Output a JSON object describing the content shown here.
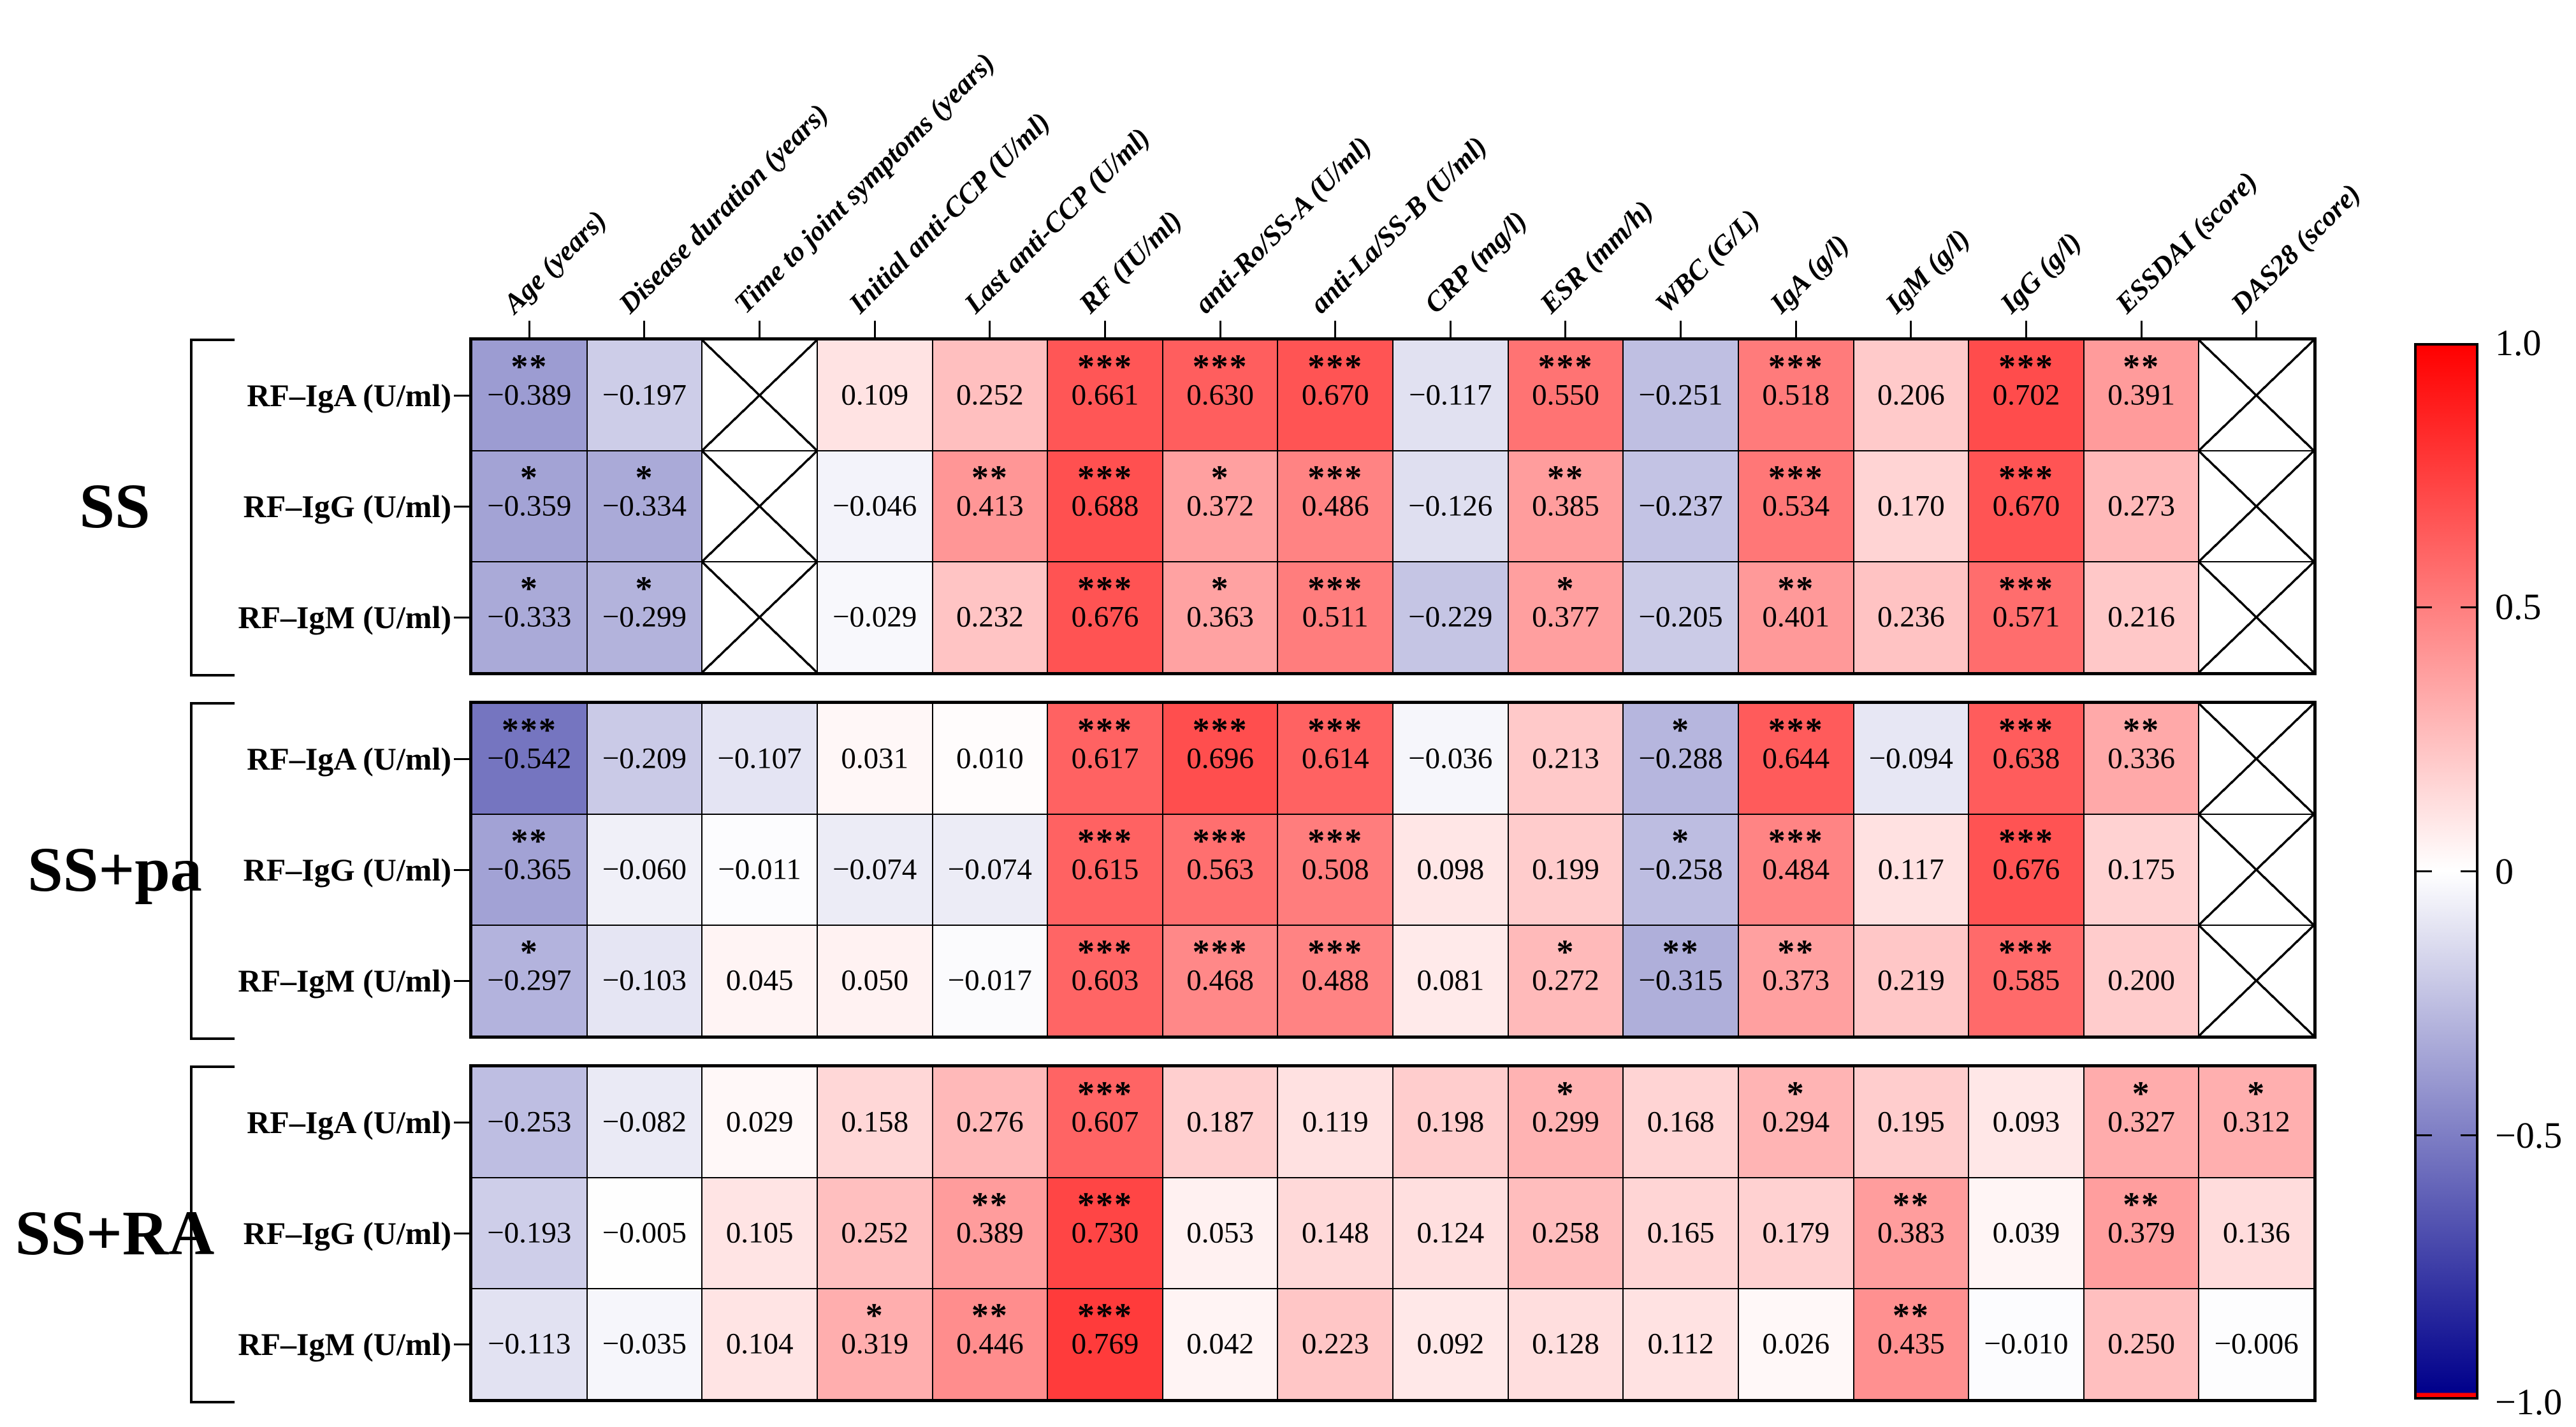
{
  "chart_data": {
    "type": "heatmap",
    "title": "",
    "description_note": "",
    "columns": [
      "Age (years)",
      "Disease duration (years)",
      "Time to joint symptoms (years)",
      "Initial anti-CCP (U/ml)",
      "Last anti-CCP (U/ml)",
      "RF (IU/ml)",
      "anti-Ro/SS-A (U/ml)",
      "anti-La/SS-B (U/ml)",
      "CRP (mg/l)",
      "ESR (mm/h)",
      "WBC (G/L)",
      "IgA (g/l)",
      "IgM (g/l)",
      "IgG (g/l)",
      "ESSDAI (score)",
      "DAS28 (score)"
    ],
    "groups": [
      {
        "label": "SS",
        "rows": [
          {
            "label": "RF–IgA (U/ml)",
            "cells": [
              {
                "v": -0.389,
                "sig": "**"
              },
              {
                "v": -0.197,
                "sig": ""
              },
              null,
              {
                "v": 0.109,
                "sig": ""
              },
              {
                "v": 0.252,
                "sig": ""
              },
              {
                "v": 0.661,
                "sig": "***"
              },
              {
                "v": 0.63,
                "sig": "***"
              },
              {
                "v": 0.67,
                "sig": "***"
              },
              {
                "v": -0.117,
                "sig": ""
              },
              {
                "v": 0.55,
                "sig": "***"
              },
              {
                "v": -0.251,
                "sig": ""
              },
              {
                "v": 0.518,
                "sig": "***"
              },
              {
                "v": 0.206,
                "sig": ""
              },
              {
                "v": 0.702,
                "sig": "***"
              },
              {
                "v": 0.391,
                "sig": "**"
              },
              null
            ]
          },
          {
            "label": "RF–IgG (U/ml)",
            "cells": [
              {
                "v": -0.359,
                "sig": "*"
              },
              {
                "v": -0.334,
                "sig": "*"
              },
              null,
              {
                "v": -0.046,
                "sig": ""
              },
              {
                "v": 0.413,
                "sig": "**"
              },
              {
                "v": 0.688,
                "sig": "***"
              },
              {
                "v": 0.372,
                "sig": "*"
              },
              {
                "v": 0.486,
                "sig": "***"
              },
              {
                "v": -0.126,
                "sig": ""
              },
              {
                "v": 0.385,
                "sig": "**"
              },
              {
                "v": -0.237,
                "sig": ""
              },
              {
                "v": 0.534,
                "sig": "***"
              },
              {
                "v": 0.17,
                "sig": ""
              },
              {
                "v": 0.67,
                "sig": "***"
              },
              {
                "v": 0.273,
                "sig": ""
              },
              null
            ]
          },
          {
            "label": "RF–IgM (U/ml)",
            "cells": [
              {
                "v": -0.333,
                "sig": "*"
              },
              {
                "v": -0.299,
                "sig": "*"
              },
              null,
              {
                "v": -0.029,
                "sig": ""
              },
              {
                "v": 0.232,
                "sig": ""
              },
              {
                "v": 0.676,
                "sig": "***"
              },
              {
                "v": 0.363,
                "sig": "*"
              },
              {
                "v": 0.511,
                "sig": "***"
              },
              {
                "v": -0.229,
                "sig": ""
              },
              {
                "v": 0.377,
                "sig": "*"
              },
              {
                "v": -0.205,
                "sig": ""
              },
              {
                "v": 0.401,
                "sig": "**"
              },
              {
                "v": 0.236,
                "sig": ""
              },
              {
                "v": 0.571,
                "sig": "***"
              },
              {
                "v": 0.216,
                "sig": ""
              },
              null
            ]
          }
        ]
      },
      {
        "label": "SS+pa",
        "rows": [
          {
            "label": "RF–IgA (U/ml)",
            "cells": [
              {
                "v": -0.542,
                "sig": "***"
              },
              {
                "v": -0.209,
                "sig": ""
              },
              {
                "v": -0.107,
                "sig": ""
              },
              {
                "v": 0.031,
                "sig": ""
              },
              {
                "v": 0.01,
                "sig": ""
              },
              {
                "v": 0.617,
                "sig": "***"
              },
              {
                "v": 0.696,
                "sig": "***"
              },
              {
                "v": 0.614,
                "sig": "***"
              },
              {
                "v": -0.036,
                "sig": ""
              },
              {
                "v": 0.213,
                "sig": ""
              },
              {
                "v": -0.288,
                "sig": "*"
              },
              {
                "v": 0.644,
                "sig": "***"
              },
              {
                "v": -0.094,
                "sig": ""
              },
              {
                "v": 0.638,
                "sig": "***"
              },
              {
                "v": 0.336,
                "sig": "**"
              },
              null
            ]
          },
          {
            "label": "RF–IgG (U/ml)",
            "cells": [
              {
                "v": -0.365,
                "sig": "**"
              },
              {
                "v": -0.06,
                "sig": ""
              },
              {
                "v": -0.011,
                "sig": ""
              },
              {
                "v": -0.074,
                "sig": ""
              },
              {
                "v": -0.074,
                "sig": ""
              },
              {
                "v": 0.615,
                "sig": "***"
              },
              {
                "v": 0.563,
                "sig": "***"
              },
              {
                "v": 0.508,
                "sig": "***"
              },
              {
                "v": 0.098,
                "sig": ""
              },
              {
                "v": 0.199,
                "sig": ""
              },
              {
                "v": -0.258,
                "sig": "*"
              },
              {
                "v": 0.484,
                "sig": "***"
              },
              {
                "v": 0.117,
                "sig": ""
              },
              {
                "v": 0.676,
                "sig": "***"
              },
              {
                "v": 0.175,
                "sig": ""
              },
              null
            ]
          },
          {
            "label": "RF–IgM (U/ml)",
            "cells": [
              {
                "v": -0.297,
                "sig": "*"
              },
              {
                "v": -0.103,
                "sig": ""
              },
              {
                "v": 0.045,
                "sig": ""
              },
              {
                "v": 0.05,
                "sig": ""
              },
              {
                "v": -0.017,
                "sig": ""
              },
              {
                "v": 0.603,
                "sig": "***"
              },
              {
                "v": 0.468,
                "sig": "***"
              },
              {
                "v": 0.488,
                "sig": "***"
              },
              {
                "v": 0.081,
                "sig": ""
              },
              {
                "v": 0.272,
                "sig": "*"
              },
              {
                "v": -0.315,
                "sig": "**"
              },
              {
                "v": 0.373,
                "sig": "**"
              },
              {
                "v": 0.219,
                "sig": ""
              },
              {
                "v": 0.585,
                "sig": "***"
              },
              {
                "v": 0.2,
                "sig": ""
              },
              null
            ]
          }
        ]
      },
      {
        "label": "SS+RA",
        "rows": [
          {
            "label": "RF–IgA (U/ml)",
            "cells": [
              {
                "v": -0.253,
                "sig": ""
              },
              {
                "v": -0.082,
                "sig": ""
              },
              {
                "v": 0.029,
                "sig": ""
              },
              {
                "v": 0.158,
                "sig": ""
              },
              {
                "v": 0.276,
                "sig": ""
              },
              {
                "v": 0.607,
                "sig": "***"
              },
              {
                "v": 0.187,
                "sig": ""
              },
              {
                "v": 0.119,
                "sig": ""
              },
              {
                "v": 0.198,
                "sig": ""
              },
              {
                "v": 0.299,
                "sig": "*"
              },
              {
                "v": 0.168,
                "sig": ""
              },
              {
                "v": 0.294,
                "sig": "*"
              },
              {
                "v": 0.195,
                "sig": ""
              },
              {
                "v": 0.093,
                "sig": ""
              },
              {
                "v": 0.327,
                "sig": "*"
              },
              {
                "v": 0.312,
                "sig": "*"
              }
            ]
          },
          {
            "label": "RF–IgG (U/ml)",
            "cells": [
              {
                "v": -0.193,
                "sig": ""
              },
              {
                "v": -0.005,
                "sig": ""
              },
              {
                "v": 0.105,
                "sig": ""
              },
              {
                "v": 0.252,
                "sig": ""
              },
              {
                "v": 0.389,
                "sig": "**"
              },
              {
                "v": 0.73,
                "sig": "***"
              },
              {
                "v": 0.053,
                "sig": ""
              },
              {
                "v": 0.148,
                "sig": ""
              },
              {
                "v": 0.124,
                "sig": ""
              },
              {
                "v": 0.258,
                "sig": ""
              },
              {
                "v": 0.165,
                "sig": ""
              },
              {
                "v": 0.179,
                "sig": ""
              },
              {
                "v": 0.383,
                "sig": "**"
              },
              {
                "v": 0.039,
                "sig": ""
              },
              {
                "v": 0.379,
                "sig": "**"
              },
              {
                "v": 0.136,
                "sig": ""
              }
            ]
          },
          {
            "label": "RF–IgM (U/ml)",
            "cells": [
              {
                "v": -0.113,
                "sig": ""
              },
              {
                "v": -0.035,
                "sig": ""
              },
              {
                "v": 0.104,
                "sig": ""
              },
              {
                "v": 0.319,
                "sig": "*"
              },
              {
                "v": 0.446,
                "sig": "**"
              },
              {
                "v": 0.769,
                "sig": "***"
              },
              {
                "v": 0.042,
                "sig": ""
              },
              {
                "v": 0.223,
                "sig": ""
              },
              {
                "v": 0.092,
                "sig": ""
              },
              {
                "v": 0.128,
                "sig": ""
              },
              {
                "v": 0.112,
                "sig": ""
              },
              {
                "v": 0.026,
                "sig": ""
              },
              {
                "v": 0.435,
                "sig": "**"
              },
              {
                "v": -0.01,
                "sig": ""
              },
              {
                "v": 0.25,
                "sig": ""
              },
              {
                "v": -0.006,
                "sig": ""
              }
            ]
          }
        ]
      }
    ],
    "legend": {
      "tick_labels": [
        "1.0",
        "0.5",
        "0",
        "−0.5",
        "−1.0"
      ],
      "range": [
        -1,
        1
      ],
      "position": "right"
    },
    "colors": {
      "max": "#ff0000",
      "mid": "#ffffff",
      "min": "#00008b"
    },
    "crossed_cells_marker": "X"
  }
}
